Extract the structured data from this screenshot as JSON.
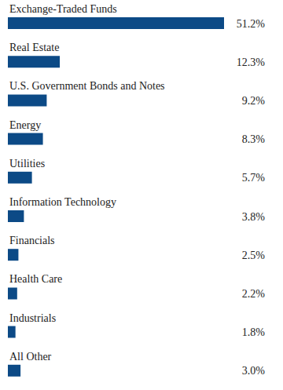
{
  "chart_data": {
    "type": "bar",
    "orientation": "horizontal",
    "categories": [
      "Exchange-Traded Funds",
      "Real Estate",
      "U.S. Government Bonds and Notes",
      "Energy",
      "Utilities",
      "Information Technology",
      "Financials",
      "Health Care",
      "Industrials",
      "All Other"
    ],
    "values": [
      51.2,
      12.3,
      9.2,
      8.3,
      5.7,
      3.8,
      2.5,
      2.2,
      1.8,
      3.0
    ],
    "value_labels": [
      "51.2%",
      "12.3%",
      "9.2%",
      "8.3%",
      "5.7%",
      "3.8%",
      "2.5%",
      "2.2%",
      "1.8%",
      "3.0%"
    ],
    "color": "#0c4a86",
    "xlim": [
      0,
      51.2
    ],
    "data_labels": true,
    "tick_labels": false
  }
}
